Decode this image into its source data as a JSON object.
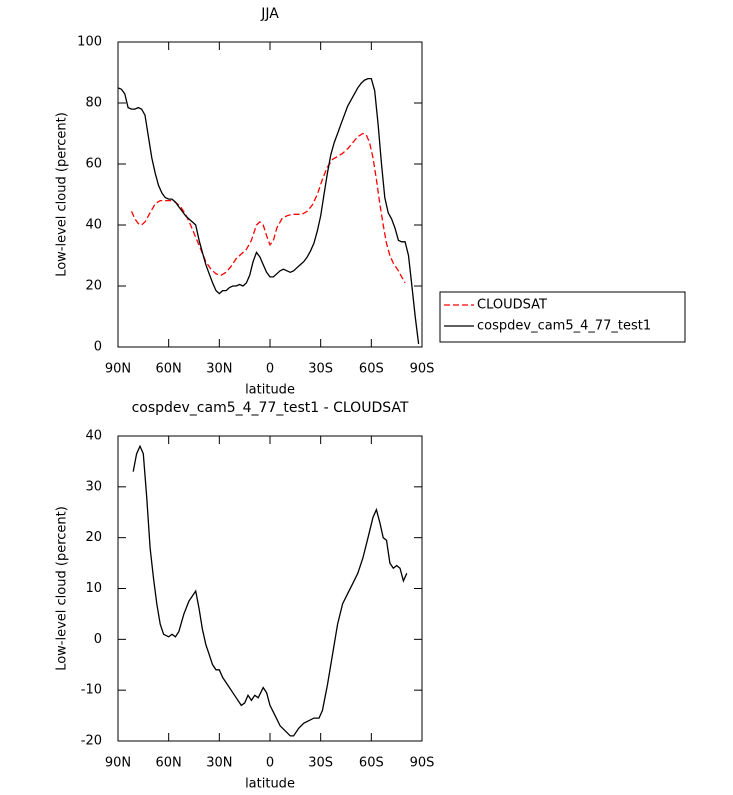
{
  "chart_data": [
    {
      "type": "line",
      "title": "JJA",
      "xlabel": "latitude",
      "ylabel": "Low-level cloud (percent)",
      "xlim": [
        90,
        -90
      ],
      "ylim": [
        0,
        100
      ],
      "xticks": [
        {
          "value": 90,
          "label": "90N"
        },
        {
          "value": 60,
          "label": "60N"
        },
        {
          "value": 30,
          "label": "30N"
        },
        0,
        {
          "value": -30,
          "label": "30S"
        },
        {
          "value": -60,
          "label": "60S"
        },
        {
          "value": -90,
          "label": "90S"
        }
      ],
      "yticks": [
        0,
        20,
        40,
        60,
        80,
        100
      ],
      "legend": "right",
      "series": [
        {
          "name": "CLOUDSAT",
          "color": "#ff0000",
          "dashed": true,
          "x": [
            82,
            80,
            78,
            76,
            74,
            72,
            70,
            68,
            65,
            62,
            59,
            56,
            53,
            50,
            47,
            44,
            41,
            38,
            35,
            32,
            29,
            26,
            23,
            20,
            17,
            14,
            11,
            8,
            6,
            4,
            2,
            0,
            -2,
            -4,
            -7,
            -10,
            -13,
            -16,
            -19,
            -22,
            -25,
            -28,
            -31,
            -34,
            -37,
            -40,
            -43,
            -46,
            -49,
            -52,
            -55,
            -57,
            -59,
            -61,
            -63,
            -65,
            -67,
            -69,
            -71,
            -73,
            -76,
            -78,
            -80
          ],
          "values": [
            44.5,
            42,
            40.5,
            40,
            41,
            43,
            45,
            47,
            48,
            48,
            48,
            47.5,
            46,
            43.5,
            40,
            36,
            32,
            28,
            25.5,
            24,
            23.5,
            24.5,
            26.5,
            29,
            30.5,
            32,
            35,
            40,
            41,
            40,
            36.5,
            33.5,
            35,
            39,
            42,
            43,
            43.5,
            43.5,
            43.5,
            44.5,
            46.5,
            50,
            55,
            59,
            61.5,
            62.5,
            63.5,
            65,
            67,
            69,
            70,
            69.5,
            67,
            62,
            55,
            47,
            40,
            34,
            30,
            27.5,
            25,
            23,
            21
          ]
        },
        {
          "name": "cospdev_cam5_4_77_test1",
          "color": "#000000",
          "dashed": false,
          "x": [
            90,
            88,
            86,
            84,
            82,
            80,
            78,
            76,
            74,
            72,
            70,
            68,
            66,
            64,
            62,
            60,
            58,
            56,
            54,
            52,
            50,
            48,
            46,
            44,
            42,
            40,
            38,
            36,
            34,
            32,
            30,
            28,
            26,
            24,
            22,
            20,
            18,
            16,
            14,
            12,
            10,
            8,
            6,
            4,
            2,
            0,
            -2,
            -4,
            -6,
            -8,
            -10,
            -12,
            -14,
            -16,
            -18,
            -20,
            -22,
            -24,
            -26,
            -28,
            -30,
            -32,
            -34,
            -36,
            -38,
            -40,
            -42,
            -44,
            -46,
            -48,
            -50,
            -52,
            -54,
            -56,
            -58,
            -60,
            -62,
            -64,
            -66,
            -68,
            -70,
            -72,
            -74,
            -76,
            -78,
            -80,
            -82,
            -84,
            -86,
            -88
          ],
          "values": [
            85,
            84.5,
            83,
            78.5,
            78,
            78,
            78.5,
            78,
            76,
            69,
            62,
            57,
            53,
            50.5,
            49,
            48.5,
            48.5,
            47.5,
            46,
            44.5,
            43,
            42,
            41,
            40,
            35,
            31,
            27,
            24,
            21,
            18.5,
            17.5,
            18.5,
            18.5,
            19.5,
            20,
            20,
            20.5,
            20,
            21,
            23.5,
            28,
            31,
            29.5,
            27,
            24.5,
            23,
            23,
            24,
            25,
            25.5,
            25,
            24.5,
            25,
            26,
            27,
            28,
            29.5,
            31.5,
            34,
            38,
            43,
            50,
            57,
            63,
            67,
            70,
            73,
            76,
            79,
            81,
            83,
            85,
            86.5,
            87.5,
            88,
            88,
            84,
            73,
            60,
            49,
            44,
            42,
            39,
            35,
            34.5,
            34.5,
            30,
            20,
            10,
            1
          ]
        }
      ]
    },
    {
      "type": "line",
      "title": "cospdev_cam5_4_77_test1 - CLOUDSAT",
      "xlabel": "latitude",
      "ylabel": "Low-level cloud (percent)",
      "xlim": [
        90,
        -90
      ],
      "ylim": [
        -20,
        40
      ],
      "xticks": [
        {
          "value": 90,
          "label": "90N"
        },
        {
          "value": 60,
          "label": "60N"
        },
        {
          "value": 30,
          "label": "30N"
        },
        0,
        {
          "value": -30,
          "label": "30S"
        },
        {
          "value": -60,
          "label": "60S"
        },
        {
          "value": -90,
          "label": "90S"
        }
      ],
      "yticks": [
        -20,
        -10,
        0,
        10,
        20,
        30,
        40
      ],
      "series": [
        {
          "color": "#000000",
          "dashed": false,
          "x": [
            81,
            79,
            77,
            75,
            73,
            71,
            69,
            67,
            65,
            63,
            60,
            58,
            56,
            54,
            51,
            48,
            46,
            44,
            42,
            40,
            38,
            36,
            34,
            32,
            30,
            28,
            25,
            22,
            19,
            17,
            15,
            13,
            11,
            9,
            7,
            4,
            2,
            0,
            -3,
            -6,
            -9,
            -12,
            -14,
            -17,
            -20,
            -23,
            -26,
            -29,
            -31,
            -34,
            -37,
            -40,
            -43,
            -46,
            -49,
            -52,
            -55,
            -58,
            -61,
            -63,
            -65,
            -67,
            -69,
            -71,
            -73,
            -75,
            -77,
            -79,
            -81
          ],
          "values": [
            33,
            36.5,
            38,
            36.5,
            28,
            18,
            12,
            7,
            3,
            1,
            0.5,
            1,
            0.5,
            1.5,
            5,
            7.5,
            8.5,
            9.5,
            6,
            2,
            -1,
            -3,
            -5,
            -6,
            -6,
            -7.5,
            -9,
            -10.5,
            -12,
            -13,
            -12.5,
            -11,
            -12,
            -11,
            -11.5,
            -9.5,
            -10.5,
            -13,
            -15,
            -17,
            -18,
            -19,
            -19,
            -17.5,
            -16.5,
            -16,
            -15.5,
            -15.5,
            -14,
            -9,
            -3,
            3,
            7,
            9,
            11,
            13,
            16,
            20,
            24,
            25.5,
            23,
            20,
            19.5,
            15,
            14,
            14.5,
            14,
            11.5,
            13
          ]
        }
      ]
    }
  ]
}
